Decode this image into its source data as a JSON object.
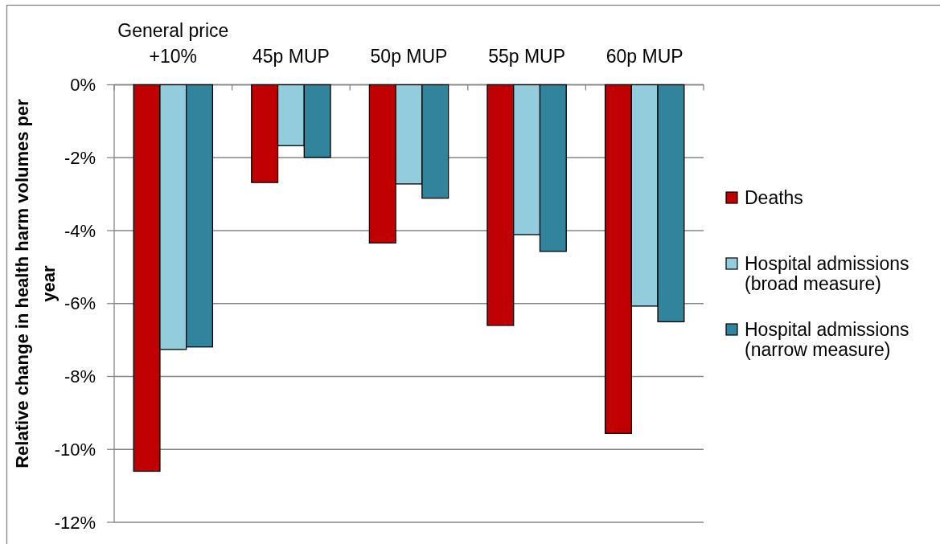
{
  "chart_data": {
    "type": "bar",
    "ylabel": "Relative change in health harm volumes per year",
    "categories": [
      "General price +10%",
      "45p MUP",
      "50p MUP",
      "55p MUP",
      "60p MUP"
    ],
    "series": [
      {
        "name": "Deaths",
        "color": "#c00000",
        "values": [
          -10.6,
          -2.68,
          -4.34,
          -6.6,
          -9.56
        ]
      },
      {
        "name": "Hospital admissions (broad measure)",
        "color": "#93cddd",
        "values": [
          -7.26,
          -1.67,
          -2.72,
          -4.11,
          -6.07
        ]
      },
      {
        "name": "Hospital admissions (narrow measure)",
        "color": "#31849b",
        "values": [
          -7.19,
          -1.99,
          -3.11,
          -4.57,
          -6.5
        ]
      }
    ],
    "ylim": [
      -12,
      0
    ],
    "yticks": [
      {
        "value": -12,
        "label": "-12%"
      },
      {
        "value": -10,
        "label": "-10%"
      },
      {
        "value": -8,
        "label": "-8%"
      },
      {
        "value": -6,
        "label": "-6%"
      },
      {
        "value": -4,
        "label": "-4%"
      },
      {
        "value": -2,
        "label": "-2%"
      },
      {
        "value": 0,
        "label": "0%"
      }
    ],
    "grid": "y",
    "legend": "right"
  }
}
